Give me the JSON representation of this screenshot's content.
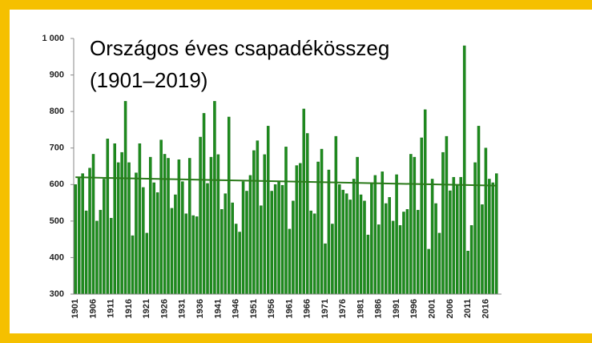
{
  "chart_data": {
    "type": "bar",
    "title": "Országos éves csapadékösszeg",
    "subtitle": "(1901–2019)",
    "categories": [
      "1901",
      null,
      null,
      null,
      null,
      "1906",
      null,
      null,
      null,
      null,
      "1911",
      null,
      null,
      null,
      null,
      "1916",
      null,
      null,
      null,
      null,
      "1921",
      null,
      null,
      null,
      null,
      "1926",
      null,
      null,
      null,
      null,
      "1931",
      null,
      null,
      null,
      null,
      "1936",
      null,
      null,
      null,
      null,
      "1941",
      null,
      null,
      null,
      null,
      "1946",
      null,
      null,
      null,
      null,
      "1951",
      null,
      null,
      null,
      null,
      "1956",
      null,
      null,
      null,
      null,
      "1961",
      null,
      null,
      null,
      null,
      "1966",
      null,
      null,
      null,
      null,
      "1971",
      null,
      null,
      null,
      null,
      "1976",
      null,
      null,
      null,
      null,
      "1981",
      null,
      null,
      null,
      null,
      "1986",
      null,
      null,
      null,
      null,
      "1991",
      null,
      null,
      null,
      null,
      "1996",
      null,
      null,
      null,
      null,
      "2001",
      null,
      null,
      null,
      null,
      "2006",
      null,
      null,
      null,
      null,
      "2011",
      null,
      null,
      null,
      null,
      "2016",
      null,
      null,
      null
    ],
    "values": [
      600,
      620,
      630,
      528,
      645,
      683,
      500,
      530,
      615,
      725,
      508,
      712,
      660,
      688,
      828,
      660,
      460,
      632,
      712,
      592,
      467,
      675,
      605,
      578,
      722,
      683,
      672,
      535,
      572,
      668,
      608,
      520,
      672,
      515,
      512,
      730,
      795,
      603,
      675,
      828,
      682,
      532,
      575,
      785,
      550,
      492,
      470,
      608,
      582,
      625,
      693,
      720,
      542,
      682,
      760,
      582,
      600,
      607,
      598,
      703,
      478,
      555,
      652,
      658,
      807,
      740,
      528,
      520,
      662,
      697,
      438,
      640,
      492,
      732,
      600,
      585,
      575,
      558,
      615,
      675,
      572,
      555,
      462,
      605,
      625,
      490,
      635,
      548,
      565,
      500,
      627,
      488,
      525,
      532,
      683,
      675,
      530,
      728,
      805,
      423,
      615,
      548,
      467,
      688,
      732,
      583,
      620,
      600,
      620,
      980,
      418,
      488,
      660,
      760,
      545,
      700,
      615,
      605,
      630
    ],
    "color": "#1e8c1e",
    "trendline": {
      "start": 620,
      "end": 597,
      "color": "#2a7a1a"
    },
    "ylim": [
      300,
      1000
    ],
    "yticks": [
      300,
      400,
      500,
      600,
      700,
      800,
      900,
      {
        "value": 1000,
        "label": "1 000"
      }
    ],
    "grid": false
  }
}
